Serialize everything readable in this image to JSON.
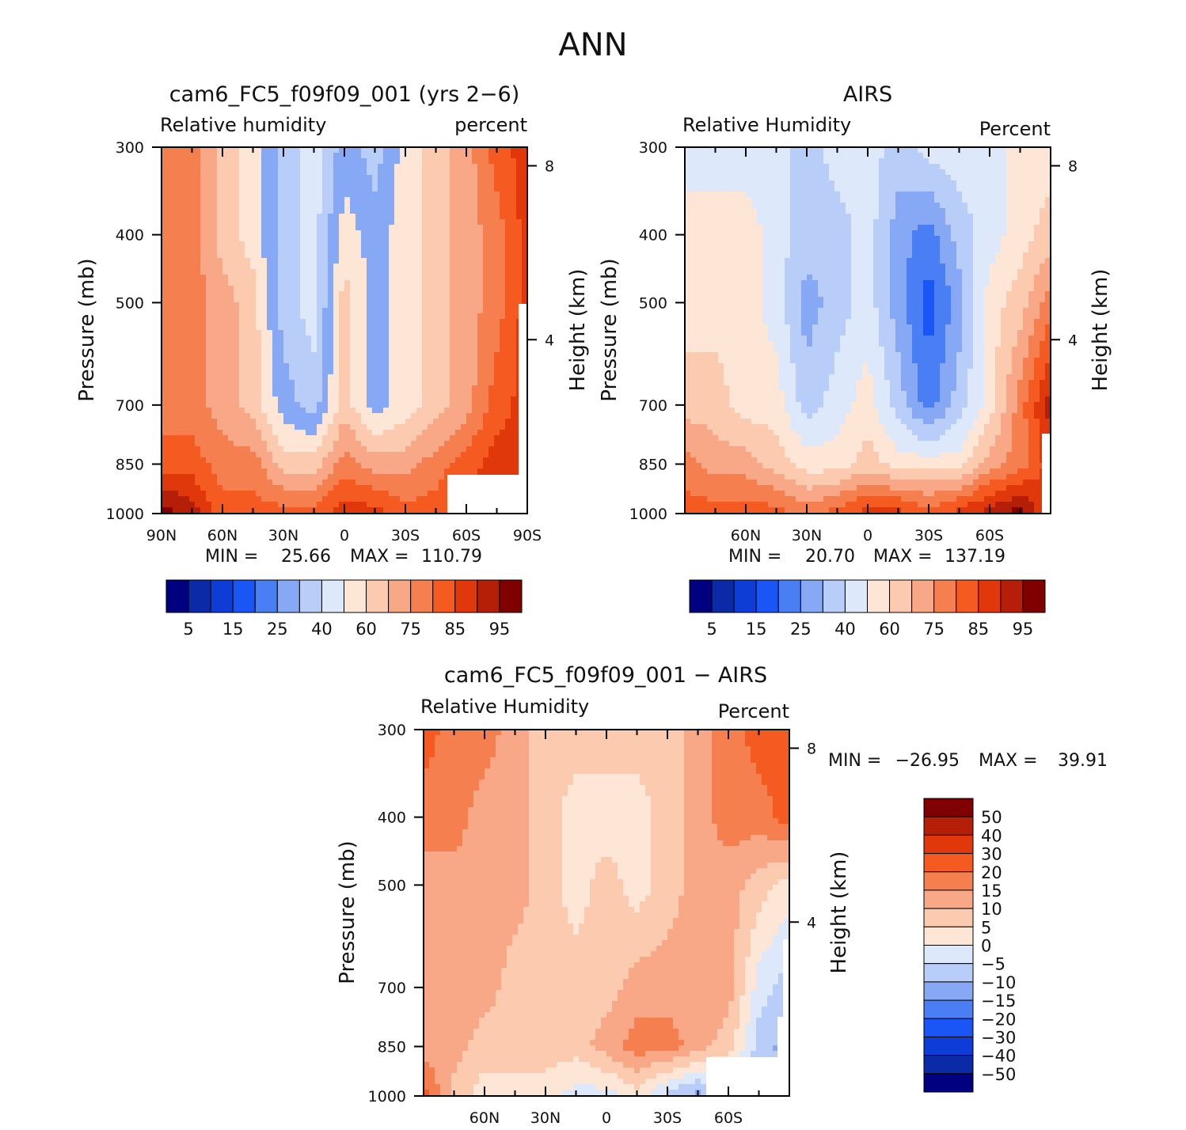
{
  "page_title": "ANN",
  "chart_data": [
    {
      "type": "heatmap",
      "title": "cam6_FC5_f09f09_001 (yrs 2−6)",
      "variable": "Relative humidity",
      "units": "percent",
      "xlabel": "",
      "ylabel": "Pressure (mb)",
      "ylabel_right": "Height (km)",
      "x_ticks": [
        "90N",
        "60N",
        "30N",
        "0",
        "30S",
        "60S",
        "90S"
      ],
      "y_ticks": [
        "300",
        "400",
        "500",
        "700",
        "850",
        "1000"
      ],
      "height_ticks": [
        "8",
        "4"
      ],
      "ylim": [
        1000,
        300
      ],
      "scale": "log-pressure",
      "min_label": "MIN =",
      "min_value": "25.66",
      "max_label": "MAX =",
      "max_value": "110.79",
      "colorbar": {
        "orientation": "horizontal",
        "labels": [
          "5",
          "15",
          "25",
          "40",
          "60",
          "75",
          "85",
          "95"
        ],
        "colors": [
          "#000080",
          "#0a2aa8",
          "#0d3dd6",
          "#1a55f5",
          "#4a7ef5",
          "#86a8f5",
          "#b8cef8",
          "#dde9fb",
          "#fde6d5",
          "#fbcaaf",
          "#f8a887",
          "#f57f4f",
          "#f55a20",
          "#e0380a",
          "#b51f08",
          "#800000"
        ]
      },
      "field": {
        "colors": [
          "#dde9fb",
          "#b8cef8",
          "#86a8f5",
          "#fde6d5",
          "#fbcaaf",
          "#f8a887",
          "#f57f4f",
          "#f55a20",
          "#e0380a",
          "#b51f08",
          "#800000"
        ],
        "lon": [
          90,
          75,
          60,
          45,
          30,
          15,
          0,
          -15,
          -30,
          -45,
          -60,
          -75,
          -90
        ],
        "levels": [
          300,
          400,
          500,
          700,
          850,
          1000
        ],
        "values": [
          [
            6,
            6,
            4,
            3,
            1,
            0,
            2,
            1,
            3,
            4,
            5,
            7,
            8
          ],
          [
            6,
            6,
            4,
            3,
            1,
            0,
            3,
            2,
            3,
            4,
            5,
            6,
            8
          ],
          [
            6,
            6,
            5,
            4,
            1,
            0,
            4,
            2,
            3,
            4,
            5,
            6,
            8
          ],
          [
            6,
            6,
            5,
            4,
            2,
            1,
            4,
            2,
            3,
            4,
            5,
            7,
            8
          ],
          [
            7,
            7,
            6,
            6,
            4,
            4,
            6,
            5,
            5,
            6,
            7,
            8,
            8
          ],
          [
            10,
            9,
            7,
            7,
            7,
            7,
            8,
            8,
            7,
            7,
            8,
            8,
            8
          ]
        ]
      }
    },
    {
      "type": "heatmap",
      "title": "AIRS",
      "variable": "Relative Humidity",
      "units": "Percent",
      "xlabel": "",
      "ylabel": "Pressure (mb)",
      "ylabel_right": "Height (km)",
      "x_ticks": [
        "60N",
        "30N",
        "0",
        "30S",
        "60S"
      ],
      "y_ticks": [
        "300",
        "400",
        "500",
        "700",
        "850",
        "1000"
      ],
      "height_ticks": [
        "8",
        "4"
      ],
      "ylim": [
        1000,
        300
      ],
      "scale": "log-pressure",
      "min_label": "MIN =",
      "min_value": "20.70",
      "max_label": "MAX =",
      "max_value": "137.19",
      "colorbar": {
        "orientation": "horizontal",
        "labels": [
          "5",
          "15",
          "25",
          "40",
          "60",
          "75",
          "85",
          "95"
        ],
        "colors": [
          "#000080",
          "#0a2aa8",
          "#0d3dd6",
          "#1a55f5",
          "#4a7ef5",
          "#86a8f5",
          "#b8cef8",
          "#dde9fb",
          "#fde6d5",
          "#fbcaaf",
          "#f8a887",
          "#f57f4f",
          "#f55a20",
          "#e0380a",
          "#b51f08",
          "#800000"
        ]
      },
      "field": {
        "colors": [
          "#1a55f5",
          "#4a7ef5",
          "#86a8f5",
          "#b8cef8",
          "#dde9fb",
          "#fde6d5",
          "#fbcaaf",
          "#f8a887",
          "#f57f4f",
          "#f55a20",
          "#e0380a",
          "#b51f08",
          "#800000"
        ],
        "lon": [
          90,
          75,
          60,
          45,
          30,
          15,
          0,
          -15,
          -30,
          -45,
          -60,
          -75,
          -90
        ],
        "levels": [
          300,
          400,
          500,
          700,
          850,
          1000
        ],
        "values": [
          [
            4,
            4,
            4,
            4,
            3,
            4,
            4,
            3,
            4,
            4,
            4,
            5,
            5
          ],
          [
            5,
            5,
            5,
            4,
            3,
            3,
            4,
            2,
            1,
            3,
            4,
            5,
            6
          ],
          [
            5,
            5,
            5,
            4,
            2,
            3,
            4,
            2,
            0,
            2,
            5,
            6,
            8
          ],
          [
            6,
            6,
            5,
            5,
            3,
            4,
            5,
            3,
            1,
            3,
            5,
            8,
            11
          ],
          [
            8,
            7,
            7,
            6,
            5,
            5,
            6,
            5,
            5,
            5,
            7,
            8,
            10
          ],
          [
            9,
            9,
            9,
            9,
            8,
            9,
            10,
            10,
            9,
            10,
            11,
            12,
            9
          ]
        ]
      }
    },
    {
      "type": "heatmap",
      "title": "cam6_FC5_f09f09_001 − AIRS",
      "variable": "Relative Humidity",
      "units": "Percent",
      "xlabel": "",
      "ylabel": "Pressure (mb)",
      "ylabel_right": "Height (km)",
      "x_ticks": [
        "60N",
        "30N",
        "0",
        "30S",
        "60S"
      ],
      "y_ticks": [
        "300",
        "400",
        "500",
        "700",
        "850",
        "1000"
      ],
      "height_ticks": [
        "8",
        "4"
      ],
      "ylim": [
        1000,
        300
      ],
      "scale": "log-pressure",
      "min_label": "MIN =",
      "min_value": "−26.95",
      "max_label": "MAX =",
      "max_value": "39.91",
      "colorbar": {
        "orientation": "vertical",
        "labels": [
          "50",
          "40",
          "30",
          "20",
          "15",
          "10",
          "5",
          "0",
          "−5",
          "−10",
          "−15",
          "−20",
          "−30",
          "−40",
          "−50"
        ],
        "colors": [
          "#800000",
          "#b51f08",
          "#e0380a",
          "#f55a20",
          "#f57f4f",
          "#f8a887",
          "#fbcaaf",
          "#fde6d5",
          "#dde9fb",
          "#b8cef8",
          "#86a8f5",
          "#4a7ef5",
          "#1a55f5",
          "#0d3dd6",
          "#0a2aa8",
          "#000080"
        ]
      },
      "field": {
        "colors": [
          "#4a7ef5",
          "#86a8f5",
          "#b8cef8",
          "#dde9fb",
          "#fde6d5",
          "#fbcaaf",
          "#f8a887",
          "#f57f4f",
          "#f55a20"
        ],
        "lon": [
          90,
          75,
          60,
          45,
          30,
          15,
          0,
          -15,
          -30,
          -45,
          -60,
          -75,
          -90
        ],
        "levels": [
          300,
          400,
          500,
          700,
          850,
          1000
        ],
        "values": [
          [
            8,
            7,
            7,
            6,
            5,
            5,
            5,
            5,
            5,
            6,
            7,
            8,
            8
          ],
          [
            7,
            7,
            6,
            6,
            5,
            4,
            4,
            4,
            5,
            6,
            7,
            7,
            8
          ],
          [
            6,
            6,
            6,
            6,
            5,
            4,
            5,
            4,
            5,
            6,
            6,
            5,
            4
          ],
          [
            6,
            6,
            6,
            5,
            5,
            5,
            5,
            6,
            6,
            6,
            6,
            3,
            2
          ],
          [
            6,
            6,
            5,
            5,
            5,
            5,
            6,
            7,
            7,
            6,
            5,
            2,
            1
          ],
          [
            8,
            5,
            4,
            4,
            4,
            3,
            3,
            4,
            2,
            1,
            2,
            2,
            2
          ]
        ]
      }
    }
  ]
}
